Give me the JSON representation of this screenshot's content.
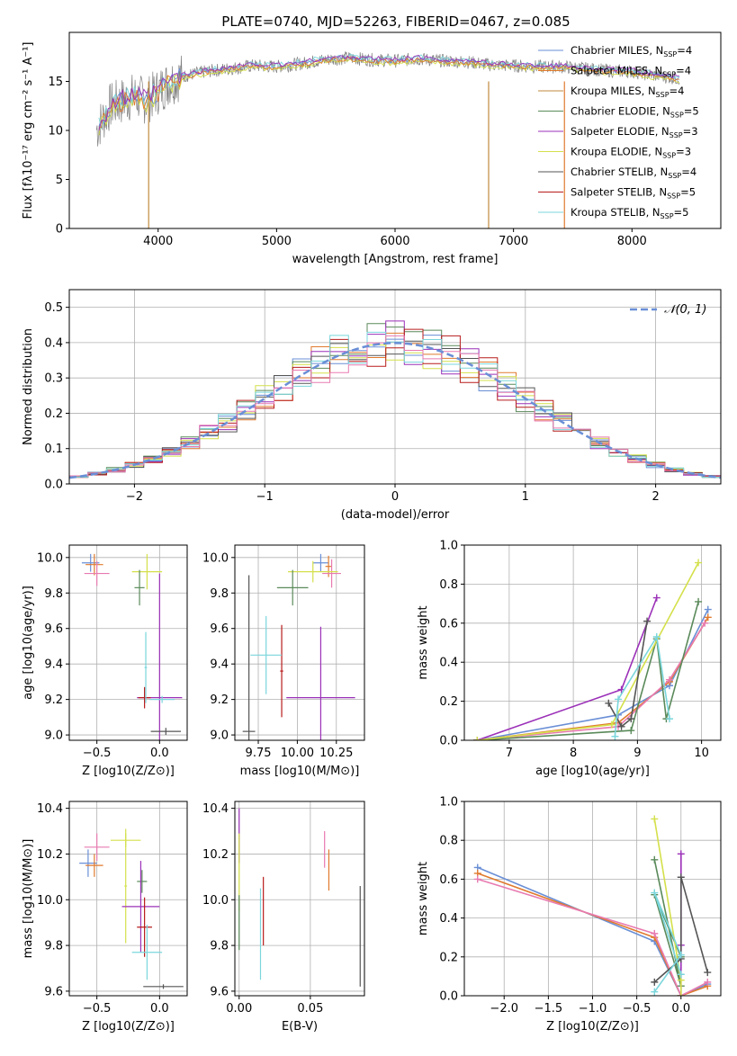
{
  "figure_title": "PLATE=0740, MJD=52263, FIBERID=0467, z=0.085",
  "colors": [
    "#6a8fd6",
    "#e07a2e",
    "#c08a3c",
    "#5a8a5a",
    "#9b30b8",
    "#d4e04a",
    "#555555",
    "#b81c1c",
    "#7ad6dc",
    "#e87ab0"
  ],
  "chart_data": [
    {
      "id": "spectrum",
      "type": "line",
      "title": "PLATE=0740, MJD=52263, FIBERID=0467, z=0.085",
      "xlabel": "wavelength [Angstrom, rest frame]",
      "ylabel": "Flux [fλ10⁻¹⁷ erg cm⁻² s⁻¹ A⁻¹]",
      "xlim": [
        3250,
        8750
      ],
      "ylim": [
        0,
        20
      ],
      "xticks": [
        4000,
        5000,
        6000,
        7000,
        8000
      ],
      "yticks": [
        0,
        5,
        10,
        15
      ],
      "legend_position": "right",
      "grid": false,
      "legend": [
        {
          "label": "Chabrier MILES, N_SSP=4",
          "color": "#6a8fd6"
        },
        {
          "label": "Salpeter MILES, N_SSP=4",
          "color": "#e07a2e"
        },
        {
          "label": "Kroupa MILES, N_SSP=4",
          "color": "#c08a3c"
        },
        {
          "label": "Chabrier ELODIE, N_SSP=5",
          "color": "#5a8a5a"
        },
        {
          "label": "Salpeter ELODIE, N_SSP=3",
          "color": "#9b30b8"
        },
        {
          "label": "Kroupa ELODIE, N_SSP=3",
          "color": "#d4e04a"
        },
        {
          "label": "Chabrier STELIB, N_SSP=4",
          "color": "#555555"
        },
        {
          "label": "Salpeter STELIB, N_SSP=5",
          "color": "#b81c1c"
        },
        {
          "label": "Kroupa STELIB, N_SSP=5",
          "color": "#7ad6dc"
        }
      ],
      "model_flux": {
        "x": [
          3500,
          3600,
          3700,
          3800,
          3900,
          4000,
          4100,
          4200,
          4400,
          4600,
          4800,
          5000,
          5200,
          5400,
          5600,
          5800,
          6000,
          6200,
          6400,
          6600,
          6800,
          7000,
          7200,
          7400,
          7600,
          7800,
          8000,
          8200,
          8400
        ],
        "y": [
          10.5,
          12.5,
          13.0,
          13.5,
          13.0,
          14.0,
          15.0,
          15.5,
          16.0,
          16.3,
          16.6,
          16.5,
          16.8,
          17.2,
          17.4,
          17.2,
          17.1,
          17.3,
          17.1,
          17.0,
          16.7,
          16.6,
          16.5,
          16.5,
          16.3,
          16.1,
          16.0,
          15.6,
          15.3
        ]
      }
    },
    {
      "id": "residuals",
      "type": "line",
      "xlabel": "(data-model)/error",
      "ylabel": "Normed distribution",
      "xlim": [
        -2.5,
        2.5
      ],
      "ylim": [
        0,
        0.55
      ],
      "xticks": [
        -2,
        -1,
        0,
        1,
        2
      ],
      "yticks": [
        0.0,
        0.1,
        0.2,
        0.3,
        0.4,
        0.5
      ],
      "grid": true,
      "legend_position": "top-right",
      "legend": [
        {
          "label": "𝒩(0, 1)",
          "color": "#6a8fd6"
        }
      ]
    },
    {
      "id": "age_vs_Z",
      "type": "scatter",
      "xlabel": "Z [log10(Z/Z⊙)]",
      "ylabel": "age  [log10(age/yr)]",
      "xlim": [
        -0.72,
        0.22
      ],
      "ylim": [
        8.97,
        10.07
      ],
      "xticks": [
        -0.5,
        0.0
      ],
      "yticks": [
        9.0,
        9.2,
        9.4,
        9.6,
        9.8,
        10.0
      ],
      "grid": true,
      "points": [
        {
          "x": -0.55,
          "y": 9.97,
          "xerr": 0.07,
          "yerr": 0.05,
          "c": 0
        },
        {
          "x": -0.52,
          "y": 9.96,
          "xerr": 0.07,
          "yerr": 0.06,
          "c": 1
        },
        {
          "x": -0.5,
          "y": 9.91,
          "xerr": 0.1,
          "yerr": 0.07,
          "c": 9
        },
        {
          "x": -0.1,
          "y": 9.92,
          "xerr": 0.12,
          "yerr": 0.1,
          "c": 5
        },
        {
          "x": -0.16,
          "y": 9.83,
          "xerr": 0.04,
          "yerr": 0.1,
          "c": 3
        },
        {
          "x": 0.0,
          "y": 9.21,
          "xerr": 0.18,
          "yerr": 0.7,
          "c": 4
        },
        {
          "x": -0.12,
          "y": 9.21,
          "xerr": 0.05,
          "yerr": 0.06,
          "c": 7
        },
        {
          "x": -0.11,
          "y": 9.38,
          "xerr": 0.01,
          "yerr": 0.2,
          "c": 8
        },
        {
          "x": 0.02,
          "y": 9.2,
          "xerr": 0.1,
          "yerr": 0.02,
          "c": 8
        },
        {
          "x": 0.05,
          "y": 9.02,
          "xerr": 0.12,
          "yerr": 0.02,
          "c": 6
        }
      ]
    },
    {
      "id": "age_vs_mass",
      "type": "scatter",
      "xlabel": "mass [log10(M/M⊙)]",
      "xlim": [
        9.6,
        10.43
      ],
      "ylim": [
        8.97,
        10.07
      ],
      "xticks": [
        9.75,
        10.0,
        10.25
      ],
      "yticks": [
        9.0,
        9.2,
        9.4,
        9.6,
        9.8,
        10.0
      ],
      "grid": true,
      "points": [
        {
          "x": 10.15,
          "y": 9.97,
          "xerr": 0.05,
          "yerr": 0.05,
          "c": 0
        },
        {
          "x": 10.2,
          "y": 9.95,
          "xerr": 0.02,
          "yerr": 0.06,
          "c": 1
        },
        {
          "x": 10.22,
          "y": 9.91,
          "xerr": 0.06,
          "yerr": 0.08,
          "c": 9
        },
        {
          "x": 10.1,
          "y": 9.92,
          "xerr": 0.16,
          "yerr": 0.06,
          "c": 5
        },
        {
          "x": 9.97,
          "y": 9.83,
          "xerr": 0.1,
          "yerr": 0.1,
          "c": 3
        },
        {
          "x": 10.15,
          "y": 9.21,
          "xerr": 0.22,
          "yerr": 0.4,
          "c": 4
        },
        {
          "x": 9.9,
          "y": 9.36,
          "xerr": 0.01,
          "yerr": 0.26,
          "c": 7
        },
        {
          "x": 9.8,
          "y": 9.45,
          "xerr": 0.1,
          "yerr": 0.22,
          "c": 8
        },
        {
          "x": 9.69,
          "y": 9.02,
          "xerr": 0.04,
          "yerr": 0.88,
          "c": 6
        }
      ]
    },
    {
      "id": "mass_weight_vs_age",
      "type": "line",
      "xlabel": "age  [log10(age/yr)]",
      "ylabel": "mass weight",
      "xlim": [
        6.3,
        10.3
      ],
      "ylim": [
        0,
        1.0
      ],
      "xticks": [
        7,
        8,
        9,
        10
      ],
      "yticks": [
        0.0,
        0.2,
        0.4,
        0.6,
        0.8,
        1.0
      ],
      "grid": true,
      "series": [
        {
          "c": 0,
          "x": [
            6.5,
            8.7,
            9.5,
            10.1
          ],
          "y": [
            0.0,
            0.13,
            0.28,
            0.67
          ]
        },
        {
          "c": 1,
          "x": [
            6.5,
            8.7,
            9.5,
            10.1
          ],
          "y": [
            0.0,
            0.09,
            0.3,
            0.63
          ]
        },
        {
          "c": 9,
          "x": [
            6.5,
            8.7,
            9.5,
            10.05
          ],
          "y": [
            0.0,
            0.07,
            0.31,
            0.6
          ]
        },
        {
          "c": 3,
          "x": [
            6.5,
            8.9,
            9.3,
            9.45,
            9.95
          ],
          "y": [
            0.0,
            0.05,
            0.52,
            0.11,
            0.71
          ]
        },
        {
          "c": 4,
          "x": [
            6.5,
            8.75,
            9.3
          ],
          "y": [
            0.0,
            0.26,
            0.73
          ]
        },
        {
          "c": 5,
          "x": [
            6.5,
            8.6,
            9.95
          ],
          "y": [
            0.0,
            0.08,
            0.91
          ]
        },
        {
          "c": 6,
          "x": [
            8.55,
            8.75,
            8.9,
            9.15
          ],
          "y": [
            0.19,
            0.07,
            0.11,
            0.61
          ]
        },
        {
          "c": 8,
          "x": [
            8.65,
            8.7,
            9.3,
            9.5
          ],
          "y": [
            0.02,
            0.21,
            0.53,
            0.11
          ]
        }
      ]
    },
    {
      "id": "mass_vs_Z",
      "type": "scatter",
      "xlabel": "Z [log10(Z/Z⊙)]",
      "ylabel": "mass [log10(M/M⊙)]",
      "xlim": [
        -0.72,
        0.22
      ],
      "ylim": [
        9.58,
        10.43
      ],
      "xticks": [
        -0.5,
        0.0
      ],
      "yticks": [
        9.6,
        9.8,
        10.0,
        10.2,
        10.4
      ],
      "grid": true,
      "points": [
        {
          "x": -0.57,
          "y": 10.16,
          "xerr": 0.07,
          "yerr": 0.06,
          "c": 0
        },
        {
          "x": -0.52,
          "y": 10.15,
          "xerr": 0.07,
          "yerr": 0.05,
          "c": 1
        },
        {
          "x": -0.5,
          "y": 10.23,
          "xerr": 0.1,
          "yerr": 0.06,
          "c": 9
        },
        {
          "x": -0.27,
          "y": 10.26,
          "xerr": 0.12,
          "yerr": 0.03,
          "c": 5
        },
        {
          "x": -0.27,
          "y": 10.06,
          "xerr": 0.01,
          "yerr": 0.25,
          "c": 5
        },
        {
          "x": -0.14,
          "y": 10.08,
          "xerr": 0.04,
          "yerr": 0.05,
          "c": 3
        },
        {
          "x": -0.15,
          "y": 9.97,
          "xerr": 0.15,
          "yerr": 0.2,
          "c": 4
        },
        {
          "x": -0.12,
          "y": 9.88,
          "xerr": 0.06,
          "yerr": 0.13,
          "c": 7
        },
        {
          "x": -0.1,
          "y": 9.77,
          "xerr": 0.12,
          "yerr": 0.12,
          "c": 8
        },
        {
          "x": 0.03,
          "y": 9.62,
          "xerr": 0.16,
          "yerr": 0.01,
          "c": 6
        }
      ]
    },
    {
      "id": "mass_vs_EBV",
      "type": "scatter",
      "xlabel": "E(B-V)",
      "xlim": [
        -0.003,
        0.088
      ],
      "ylim": [
        9.58,
        10.43
      ],
      "xticks": [
        0.0,
        0.05
      ],
      "yticks": [
        9.6,
        9.8,
        10.0,
        10.2,
        10.4
      ],
      "grid": true,
      "points": [
        {
          "x": 0.0,
          "y": 10.28,
          "yerr": 0.12,
          "c": 4
        },
        {
          "x": 0.0,
          "y": 10.12,
          "yerr": 0.17,
          "c": 5
        },
        {
          "x": 0.0,
          "y": 9.9,
          "yerr": 0.12,
          "c": 3
        },
        {
          "x": 0.015,
          "y": 9.85,
          "yerr": 0.2,
          "c": 8
        },
        {
          "x": 0.017,
          "y": 9.95,
          "yerr": 0.15,
          "c": 7
        },
        {
          "x": 0.06,
          "y": 10.22,
          "yerr": 0.08,
          "c": 9
        },
        {
          "x": 0.063,
          "y": 10.13,
          "yerr": 0.09,
          "c": 1
        },
        {
          "x": 0.085,
          "y": 9.84,
          "yerr": 0.22,
          "c": 6
        }
      ]
    },
    {
      "id": "mass_weight_vs_Z",
      "type": "line",
      "xlabel": "Z [log10(Z/Z⊙)]",
      "ylabel": "mass weight",
      "xlim": [
        -2.45,
        0.45
      ],
      "ylim": [
        0,
        1.0
      ],
      "xticks": [
        -2.0,
        -1.5,
        -1.0,
        -0.5,
        0.0
      ],
      "yticks": [
        0.0,
        0.2,
        0.4,
        0.6,
        0.8,
        1.0
      ],
      "grid": true,
      "series": [
        {
          "c": 0,
          "x": [
            -2.3,
            -0.3,
            0.0,
            0.3
          ],
          "y": [
            0.66,
            0.28,
            0.0,
            0.06
          ]
        },
        {
          "c": 1,
          "x": [
            -2.3,
            -0.3,
            0.0,
            0.3
          ],
          "y": [
            0.63,
            0.3,
            0.0,
            0.05
          ]
        },
        {
          "c": 9,
          "x": [
            -2.3,
            -0.3,
            0.0,
            0.3
          ],
          "y": [
            0.6,
            0.32,
            0.0,
            0.07
          ]
        },
        {
          "c": 3,
          "x": [
            -0.3,
            0.0,
            -0.3,
            0.0
          ],
          "y": [
            0.7,
            0.05,
            0.52,
            0.2
          ]
        },
        {
          "c": 4,
          "x": [
            0.0,
            0.0,
            0.0
          ],
          "y": [
            0.73,
            0.26,
            0.0
          ]
        },
        {
          "c": 5,
          "x": [
            -0.3,
            0.0,
            0.0
          ],
          "y": [
            0.91,
            0.08,
            0.0
          ]
        },
        {
          "c": 6,
          "x": [
            -0.3,
            0.0,
            0.0,
            0.3
          ],
          "y": [
            0.07,
            0.19,
            0.61,
            0.12
          ]
        },
        {
          "c": 8,
          "x": [
            -0.3,
            0.0,
            -0.3,
            0.0
          ],
          "y": [
            0.02,
            0.21,
            0.53,
            0.11
          ]
        }
      ]
    }
  ]
}
